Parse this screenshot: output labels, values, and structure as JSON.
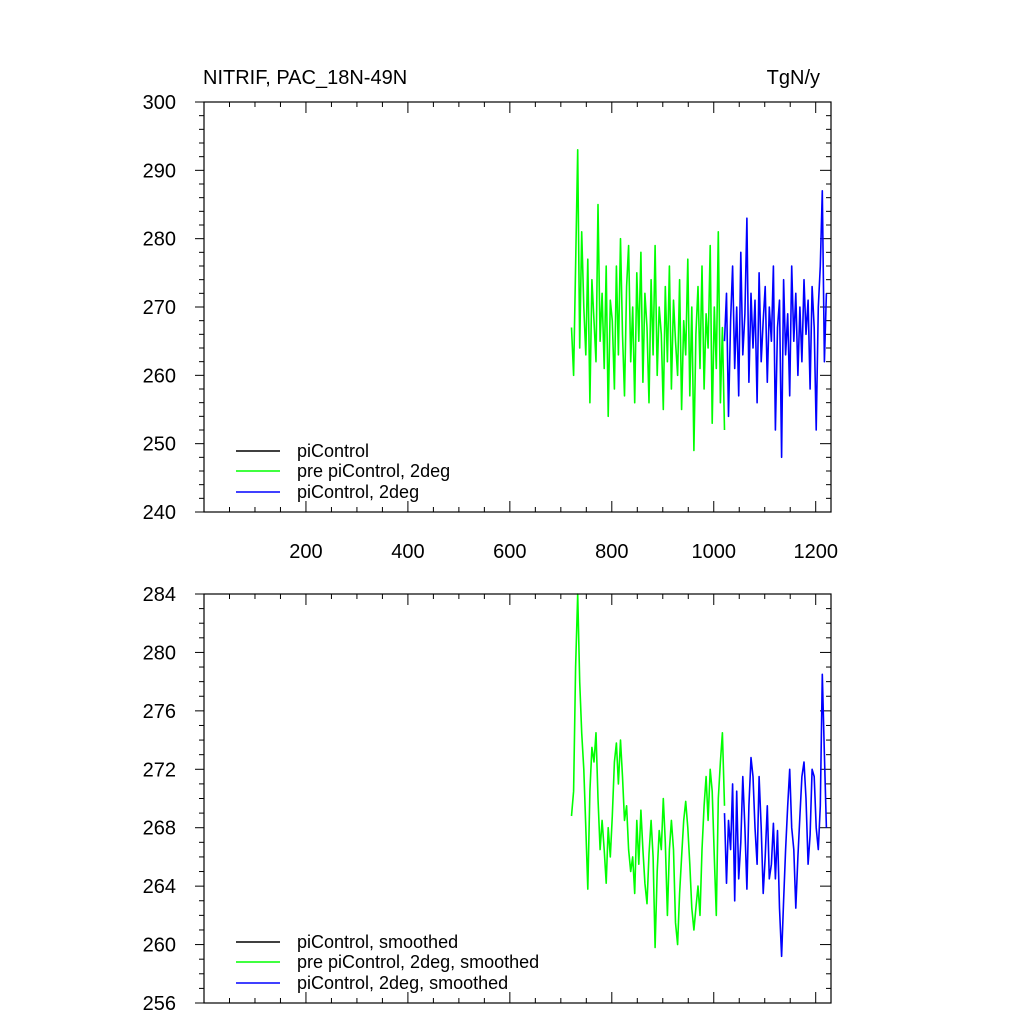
{
  "chart_data": [
    {
      "type": "line",
      "title": "NITRIF, PAC_18N-49N",
      "units": "TgN/y",
      "xlim": [
        0,
        1230
      ],
      "ylim": [
        240,
        300
      ],
      "x_ticks": [
        200,
        400,
        600,
        800,
        1000,
        1200
      ],
      "x_tick_labels": [
        "200",
        "400",
        "600",
        "800",
        "1000",
        "1200"
      ],
      "y_ticks": [
        240,
        250,
        260,
        270,
        280,
        290,
        300
      ],
      "y_tick_labels": [
        "240",
        "250",
        "260",
        "270",
        "280",
        "290",
        "300"
      ],
      "legend_position": "bottom-left",
      "series": [
        {
          "name": "piControl",
          "color": "#000000",
          "x": [],
          "y": []
        },
        {
          "name": "pre piControl, 2deg",
          "color": "#00ff00",
          "x": [
            721,
            725,
            729,
            733,
            737,
            741,
            745,
            749,
            753,
            757,
            761,
            765,
            769,
            773,
            777,
            781,
            785,
            789,
            793,
            797,
            801,
            805,
            809,
            813,
            817,
            821,
            825,
            829,
            833,
            837,
            841,
            845,
            849,
            853,
            857,
            861,
            865,
            869,
            873,
            877,
            881,
            885,
            889,
            893,
            897,
            901,
            905,
            909,
            913,
            917,
            921,
            925,
            929,
            933,
            937,
            941,
            945,
            949,
            953,
            957,
            961,
            965,
            969,
            973,
            977,
            981,
            985,
            989,
            993,
            997,
            1001,
            1005,
            1009,
            1013,
            1017,
            1021
          ],
          "y": [
            267,
            260,
            276,
            293,
            264,
            281,
            270,
            263,
            277,
            256,
            274,
            268,
            262,
            285,
            265,
            272,
            261,
            276,
            254,
            271,
            268,
            258,
            276,
            263,
            280,
            266,
            257,
            273,
            279,
            262,
            270,
            256,
            275,
            265,
            278,
            259,
            272,
            267,
            256,
            274,
            263,
            279,
            260,
            270,
            266,
            255,
            273,
            262,
            276,
            258,
            271,
            265,
            260,
            274,
            255,
            268,
            263,
            277,
            257,
            270,
            249,
            266,
            273,
            261,
            276,
            258,
            269,
            264,
            279,
            253,
            270,
            261,
            281,
            256,
            267,
            252
          ]
        },
        {
          "name": "piControl, 2deg",
          "color": "#0000ff",
          "x": [
            1021,
            1025,
            1029,
            1033,
            1037,
            1041,
            1045,
            1049,
            1053,
            1057,
            1061,
            1065,
            1069,
            1073,
            1077,
            1081,
            1085,
            1089,
            1093,
            1097,
            1101,
            1105,
            1109,
            1113,
            1117,
            1121,
            1125,
            1129,
            1133,
            1137,
            1141,
            1145,
            1149,
            1153,
            1157,
            1161,
            1165,
            1169,
            1173,
            1177,
            1181,
            1185,
            1189,
            1193,
            1197,
            1201,
            1205,
            1209,
            1213,
            1217,
            1221
          ],
          "y": [
            265,
            272,
            254,
            268,
            276,
            261,
            270,
            257,
            278,
            263,
            269,
            283,
            259,
            272,
            264,
            271,
            256,
            275,
            262,
            268,
            273,
            259,
            270,
            265,
            276,
            252,
            267,
            271,
            248,
            274,
            263,
            269,
            257,
            276,
            265,
            272,
            260,
            270,
            262,
            274,
            266,
            271,
            258,
            273,
            267,
            252,
            270,
            276,
            287,
            262,
            272
          ]
        }
      ]
    },
    {
      "type": "line",
      "title": "",
      "units": "",
      "xlim": [
        0,
        1230
      ],
      "ylim": [
        256,
        284
      ],
      "x_ticks": [
        200,
        400,
        600,
        800,
        1000,
        1200
      ],
      "x_tick_labels": [],
      "y_ticks": [
        256,
        260,
        264,
        268,
        272,
        276,
        280,
        284
      ],
      "y_tick_labels": [
        "256",
        "260",
        "264",
        "268",
        "272",
        "276",
        "280",
        "284"
      ],
      "legend_position": "bottom-left",
      "series": [
        {
          "name": "piControl, smoothed",
          "color": "#000000",
          "x": [],
          "y": []
        },
        {
          "name": "pre piControl, 2deg, smoothed",
          "color": "#00ff00",
          "x": [
            721,
            725,
            729,
            733,
            737,
            741,
            745,
            749,
            753,
            757,
            761,
            765,
            769,
            773,
            777,
            781,
            785,
            789,
            793,
            797,
            801,
            805,
            809,
            813,
            817,
            821,
            825,
            829,
            833,
            837,
            841,
            845,
            849,
            853,
            857,
            861,
            865,
            869,
            873,
            877,
            881,
            885,
            889,
            893,
            897,
            901,
            905,
            909,
            913,
            917,
            921,
            925,
            929,
            933,
            937,
            941,
            945,
            949,
            953,
            957,
            961,
            965,
            969,
            973,
            977,
            981,
            985,
            989,
            993,
            997,
            1001,
            1005,
            1009,
            1013,
            1017,
            1021
          ],
          "y": [
            268.8,
            270.5,
            279.0,
            284.0,
            278.0,
            274.5,
            272.0,
            268.0,
            263.8,
            270.5,
            273.5,
            272.5,
            274.5,
            270.0,
            266.5,
            268.5,
            266.5,
            264.2,
            268.0,
            266.0,
            268.8,
            272.5,
            273.8,
            271.0,
            274.0,
            271.5,
            268.5,
            269.5,
            266.5,
            265.0,
            266.0,
            263.5,
            268.5,
            265.5,
            269.2,
            266.5,
            264.2,
            262.8,
            266.2,
            268.5,
            266.0,
            259.8,
            265.0,
            267.8,
            266.5,
            270.0,
            267.0,
            262.0,
            266.5,
            268.5,
            266.5,
            261.5,
            260.0,
            263.5,
            266.0,
            268.5,
            269.8,
            268.0,
            265.5,
            262.5,
            261.0,
            262.5,
            264.0,
            262.0,
            266.5,
            269.5,
            271.5,
            268.5,
            272.0,
            270.5,
            266.0,
            262.0,
            270.0,
            272.5,
            274.5,
            269.5
          ]
        },
        {
          "name": "piControl, 2deg, smoothed",
          "color": "#0000ff",
          "x": [
            1021,
            1025,
            1029,
            1033,
            1037,
            1041,
            1045,
            1049,
            1053,
            1057,
            1061,
            1065,
            1069,
            1073,
            1077,
            1081,
            1085,
            1089,
            1093,
            1097,
            1101,
            1105,
            1109,
            1113,
            1117,
            1121,
            1125,
            1129,
            1133,
            1137,
            1141,
            1145,
            1149,
            1153,
            1157,
            1161,
            1165,
            1169,
            1173,
            1177,
            1181,
            1185,
            1189,
            1193,
            1197,
            1201,
            1205,
            1209,
            1213,
            1217,
            1221
          ],
          "y": [
            269.0,
            264.2,
            268.5,
            266.5,
            271.0,
            263.0,
            270.5,
            264.5,
            267.0,
            271.5,
            268.0,
            263.8,
            269.5,
            272.8,
            271.5,
            268.0,
            265.5,
            271.5,
            268.0,
            263.5,
            266.0,
            269.5,
            264.5,
            265.5,
            268.3,
            264.5,
            267.8,
            262.5,
            259.2,
            263.0,
            266.5,
            269.5,
            272.0,
            268.0,
            266.5,
            262.5,
            266.0,
            268.8,
            271.5,
            272.5,
            270.0,
            265.5,
            267.5,
            272.0,
            271.5,
            268.0,
            266.5,
            269.5,
            278.5,
            273.0,
            268.0
          ]
        }
      ]
    }
  ]
}
